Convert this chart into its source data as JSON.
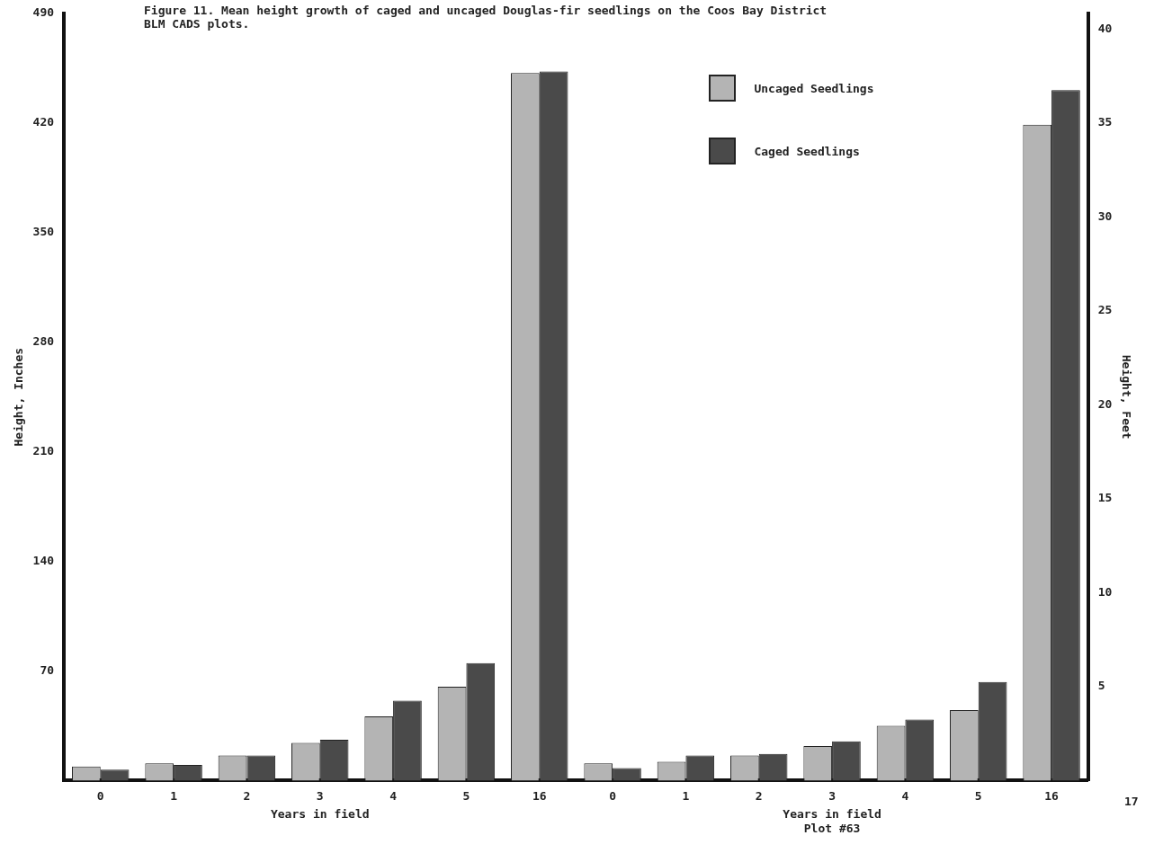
{
  "chart_data": {
    "type": "bar",
    "title": "Figure 11. Mean height growth of caged and uncaged Douglas-fir seedlings on the Coos Bay District BLM CADS plots.",
    "categories": [
      "0",
      "1",
      "2",
      "3",
      "4",
      "5",
      "16",
      "0",
      "1",
      "2",
      "3",
      "4",
      "5",
      "16"
    ],
    "series": [
      {
        "name": "Uncaged Seedlings",
        "color": "#b4b4b4",
        "values": [
          9,
          11,
          16,
          24,
          41,
          60,
          452,
          11,
          12,
          16,
          22,
          35,
          45,
          419
        ]
      },
      {
        "name": "Caged Seedlings",
        "color": "#4a4a4a",
        "values": [
          7,
          10,
          16,
          26,
          51,
          75,
          453,
          8,
          16,
          17,
          25,
          39,
          63,
          441
        ]
      }
    ],
    "xlabel": "Years in field",
    "ylabel": "Height, Inches",
    "y2label": "Height, Feet",
    "ylim": [
      0,
      490
    ],
    "yticks": [
      70,
      140,
      210,
      280,
      350,
      420,
      490
    ],
    "y2lim": [
      0,
      40.83
    ],
    "y2ticks": [
      5,
      10,
      15,
      20,
      25,
      30,
      35,
      40
    ],
    "annotations": [
      "Plot #63",
      "17"
    ],
    "legend": "top right",
    "grid": false
  }
}
